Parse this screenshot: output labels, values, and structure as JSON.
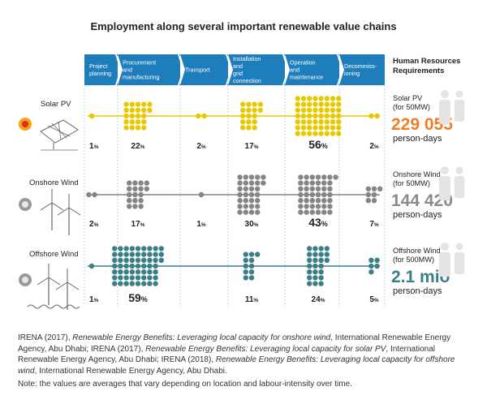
{
  "title": "Employment along several important renewable value chains",
  "chart_data": {
    "type": "table",
    "stages": [
      "Project planning",
      "Procurement and manufacturing",
      "Transport",
      "Installation and grid connection",
      "Operation and maintenance",
      "Decommiss-ioning"
    ],
    "hr_header": "Human Resources Requirements",
    "rows": [
      {
        "name": "Solar PV",
        "values": [
          1,
          22,
          2,
          17,
          56,
          2
        ],
        "labels": [
          "1%",
          "22%",
          "2%",
          "17%",
          "56%",
          "2%"
        ],
        "capacity": "(for 50MW)",
        "total": "229 055",
        "unit": "person-days",
        "color": "#e8c800",
        "total_color": "#f07e26"
      },
      {
        "name": "Onshore Wind",
        "values": [
          2,
          17,
          1,
          30,
          43,
          7
        ],
        "labels": [
          "2%",
          "17%",
          "1%",
          "30%",
          "43%",
          "7%"
        ],
        "capacity": "(for 50MW)",
        "total": "144 420",
        "unit": "person-days",
        "color": "#858585",
        "total_color": "#8a8a8a"
      },
      {
        "name": "Offshore Wind",
        "values": [
          1,
          59,
          0,
          11,
          24,
          5
        ],
        "labels": [
          "1%",
          "59%",
          "",
          "11%",
          "24%",
          "5%"
        ],
        "capacity": "(for 500MW)",
        "total": "2.1 mio",
        "unit": "person-days",
        "color": "#3b7f86",
        "total_color": "#3b7f86"
      }
    ]
  },
  "source": {
    "line1_a": "IRENA (2017), ",
    "line1_b": "Renewable Energy Benefits: Leveraging local capacity for onshore wind",
    "line1_c": ", International Renewable Energy Agency, Abu Dhabi; IRENA (2017), ",
    "line1_d": "Renewable Energy Benefits: Leveraging local capacity for solar PV",
    "line1_e": ", International Renewable Energy Agency, Abu Dhabi; IRENA (2018), ",
    "line1_f": "Renewable Energy Benefits: Leveraging local capacity for offshore wind",
    "line1_g": ", International Renewable Energy Agency, Abu Dhabi.",
    "note": "Note: the values are averages that vary depending on location and labour-intensity over time."
  }
}
